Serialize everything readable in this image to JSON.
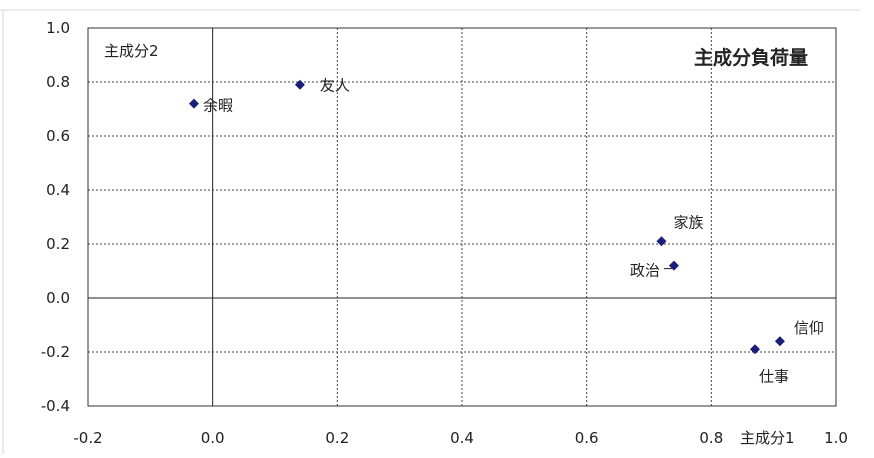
{
  "chart_data": {
    "type": "scatter",
    "title": "主成分負荷量",
    "xlabel": "主成分1",
    "ylabel": "主成分2",
    "xlim": [
      -0.2,
      1.0
    ],
    "ylim": [
      -0.4,
      1.0
    ],
    "x_ticks": [
      "-0.2",
      "0.0",
      "0.2",
      "0.4",
      "0.6",
      "0.8",
      "1.0"
    ],
    "y_ticks": [
      "1.0",
      "0.8",
      "0.6",
      "0.4",
      "0.2",
      "0.0",
      "-0.2",
      "-0.4"
    ],
    "grid": "dashed",
    "marker": "diamond",
    "marker_color": "#1a1f7a",
    "points": [
      {
        "label": "余暇",
        "x": -0.03,
        "y": 0.72
      },
      {
        "label": "友人",
        "x": 0.14,
        "y": 0.79
      },
      {
        "label": "家族",
        "x": 0.72,
        "y": 0.21
      },
      {
        "label": "政治",
        "x": 0.74,
        "y": 0.12
      },
      {
        "label": "信仰",
        "x": 0.91,
        "y": -0.16
      },
      {
        "label": "仕事",
        "x": 0.87,
        "y": -0.19
      }
    ]
  }
}
